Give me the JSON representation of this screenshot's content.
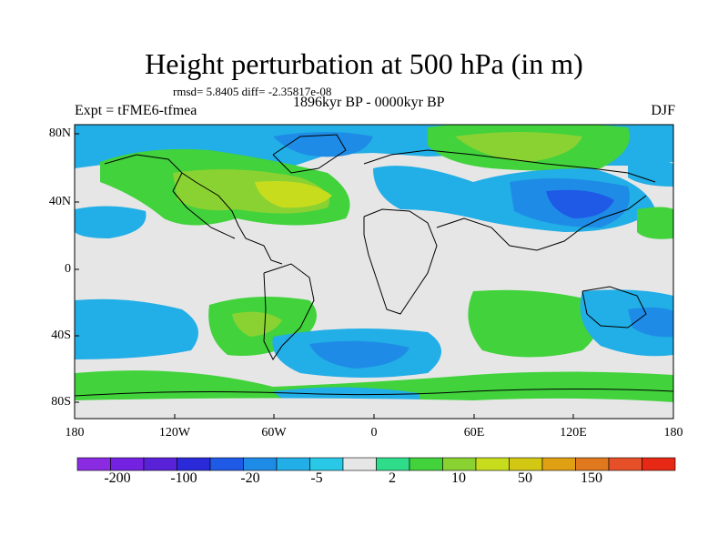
{
  "title": "Height perturbation at 500 hPa (in m)",
  "stats_line": "rmsd= 5.8405 diff= -2.35817e-08",
  "period": "1896kyr BP - 0000kyr BP",
  "experiment": "Expt = tFME6-tfmea",
  "season": "DJF",
  "axes": {
    "lat_labels": [
      "80N",
      "40N",
      "0",
      "40S",
      "80S"
    ],
    "lon_labels": [
      "180",
      "120W",
      "60W",
      "0",
      "60E",
      "120E",
      "180"
    ]
  },
  "colorbar": {
    "colors": [
      "#8a2be2",
      "#7222e0",
      "#5a22d8",
      "#2a2ad8",
      "#1e5ae6",
      "#1e8ce6",
      "#22aee6",
      "#29c8e6",
      "#e6e6e6",
      "#2edc8a",
      "#41d23c",
      "#8ad232",
      "#c8dc1e",
      "#d2c814",
      "#e0a014",
      "#e0781e",
      "#e65028",
      "#e62814"
    ],
    "tick_labels": [
      "-200",
      "-100",
      "-20",
      "-5",
      "2",
      "10",
      "50",
      "150"
    ]
  }
}
